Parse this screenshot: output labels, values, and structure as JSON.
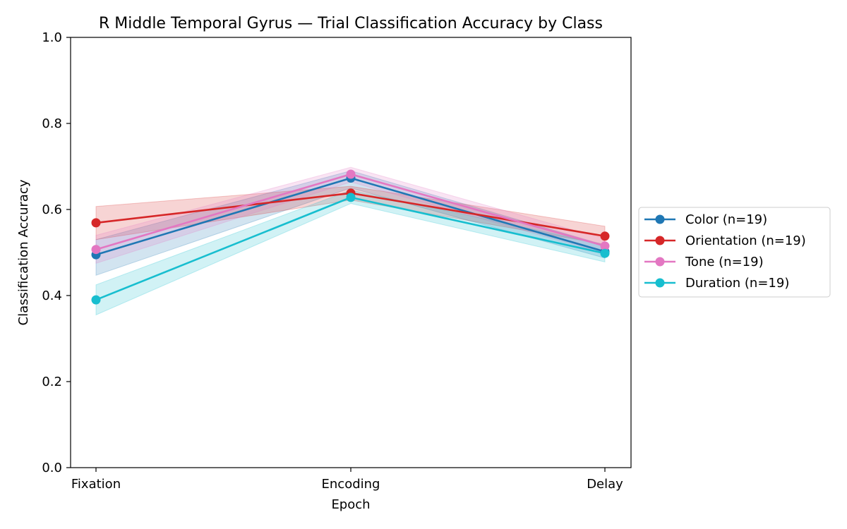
{
  "chart_data": {
    "type": "line",
    "title": "R Middle Temporal Gyrus — Trial Classification Accuracy by Class",
    "xlabel": "Epoch",
    "ylabel": "Classification Accuracy",
    "categories": [
      "Fixation",
      "Encoding",
      "Delay"
    ],
    "ylim": [
      0.0,
      1.0
    ],
    "yticks": [
      "0.0",
      "0.2",
      "0.4",
      "0.6",
      "0.8",
      "1.0"
    ],
    "grid": false,
    "legend_position": "center-right-outside",
    "series": [
      {
        "name": "Color (n=19)",
        "color": "#1f77b4",
        "values": [
          0.495,
          0.673,
          0.502
        ],
        "lower": [
          0.447,
          0.65,
          0.487
        ],
        "upper": [
          0.53,
          0.69,
          0.517
        ]
      },
      {
        "name": "Orientation (n=19)",
        "color": "#d62728",
        "values": [
          0.569,
          0.638,
          0.538
        ],
        "lower": [
          0.53,
          0.622,
          0.519
        ],
        "upper": [
          0.607,
          0.654,
          0.561
        ]
      },
      {
        "name": "Tone (n=19)",
        "color": "#e377c2",
        "values": [
          0.507,
          0.682,
          0.515
        ],
        "lower": [
          0.475,
          0.664,
          0.498
        ],
        "upper": [
          0.54,
          0.698,
          0.532
        ]
      },
      {
        "name": "Duration (n=19)",
        "color": "#17becf",
        "values": [
          0.39,
          0.628,
          0.498
        ],
        "lower": [
          0.355,
          0.614,
          0.478
        ],
        "upper": [
          0.425,
          0.645,
          0.518
        ]
      }
    ]
  }
}
